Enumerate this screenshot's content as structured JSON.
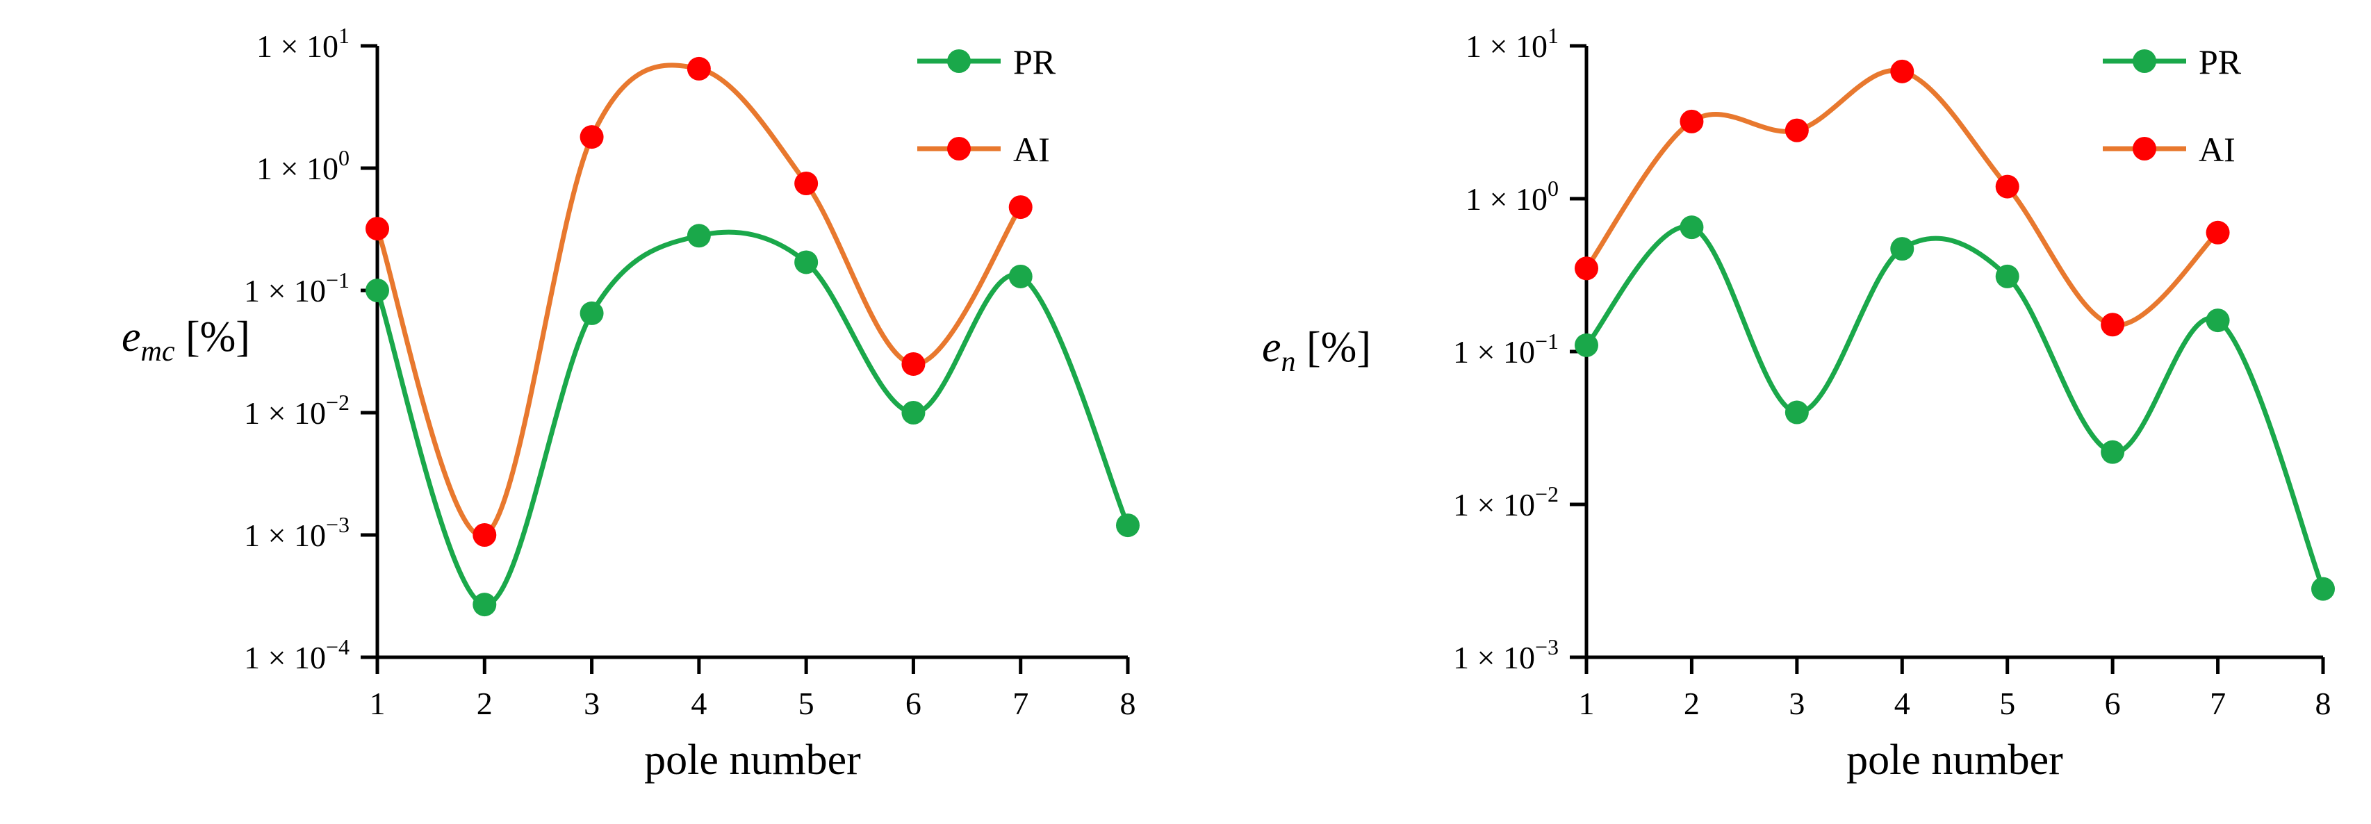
{
  "chart_data": [
    {
      "type": "line",
      "smooth": true,
      "y_scale": "log",
      "ylabel": "e_mc [%]",
      "ylabel_parts": {
        "main": "e",
        "subscript": "mc",
        "unit": "[%]"
      },
      "xlabel": "pole number",
      "x_ticks": [
        "1",
        "2",
        "3",
        "4",
        "5",
        "6",
        "7",
        "8"
      ],
      "ylim": [
        0.0001,
        10
      ],
      "y_ticks": [
        {
          "value": 10,
          "base": "1 × 10",
          "exp": "1"
        },
        {
          "value": 1,
          "base": "1 × 10",
          "exp": "0"
        },
        {
          "value": 0.1,
          "base": "1 × 10",
          "exp": "−1"
        },
        {
          "value": 0.01,
          "base": "1 × 10",
          "exp": "−2"
        },
        {
          "value": 0.001,
          "base": "1 × 10",
          "exp": "−3"
        },
        {
          "value": 0.0001,
          "base": "1 × 10",
          "exp": "−4"
        }
      ],
      "legend_position": "top-right",
      "series": [
        {
          "name": "PR",
          "line_color": "#1aa84a",
          "marker_color": "#1aa84a",
          "x": [
            1,
            2,
            3,
            4,
            5,
            6,
            7,
            8
          ],
          "y": [
            0.1,
            0.00027,
            0.065,
            0.28,
            0.17,
            0.01,
            0.13,
            0.0012
          ]
        },
        {
          "name": "AI",
          "line_color": "#e8782e",
          "marker_color": "#ff0000",
          "x": [
            1,
            2,
            3,
            4,
            5,
            6,
            7
          ],
          "y": [
            0.32,
            0.001,
            1.8,
            6.5,
            0.75,
            0.025,
            0.48
          ]
        }
      ]
    },
    {
      "type": "line",
      "smooth": true,
      "y_scale": "log",
      "ylabel": "e_n [%]",
      "ylabel_parts": {
        "main": "e",
        "subscript": "n",
        "unit": "[%]"
      },
      "xlabel": "pole number",
      "x_ticks": [
        "1",
        "2",
        "3",
        "4",
        "5",
        "6",
        "7",
        "8"
      ],
      "ylim": [
        0.001,
        10
      ],
      "y_ticks": [
        {
          "value": 10,
          "base": "1 × 10",
          "exp": "1"
        },
        {
          "value": 1,
          "base": "1 × 10",
          "exp": "0"
        },
        {
          "value": 0.1,
          "base": "1 × 10",
          "exp": "−1"
        },
        {
          "value": 0.01,
          "base": "1 × 10",
          "exp": "−2"
        },
        {
          "value": 0.001,
          "base": "1 × 10",
          "exp": "−3"
        }
      ],
      "legend_position": "top-right",
      "series": [
        {
          "name": "PR",
          "line_color": "#1aa84a",
          "marker_color": "#1aa84a",
          "x": [
            1,
            2,
            3,
            4,
            5,
            6,
            7,
            8
          ],
          "y": [
            0.11,
            0.65,
            0.04,
            0.47,
            0.31,
            0.022,
            0.16,
            0.0028
          ]
        },
        {
          "name": "AI",
          "line_color": "#e8782e",
          "marker_color": "#ff0000",
          "x": [
            1,
            2,
            3,
            4,
            5,
            6,
            7
          ],
          "y": [
            0.35,
            3.2,
            2.8,
            6.8,
            1.2,
            0.15,
            0.6
          ]
        }
      ]
    }
  ]
}
